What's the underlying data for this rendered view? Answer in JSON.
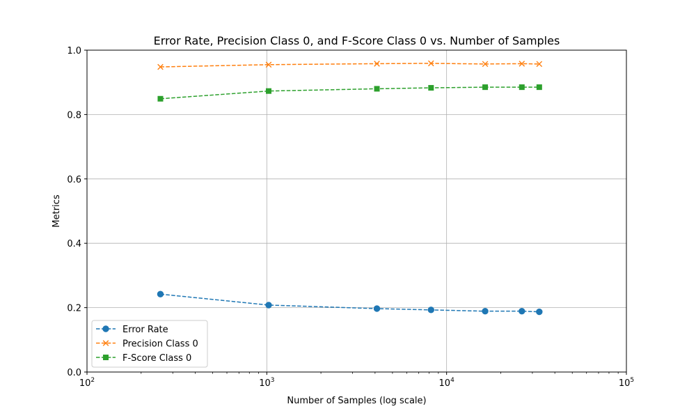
{
  "chart_data": {
    "type": "line",
    "title": "Error Rate, Precision Class 0, and F-Score Class 0 vs. Number of Samples",
    "xlabel": "Number of Samples (log scale)",
    "ylabel": "Metrics",
    "xscale": "log",
    "xlim": [
      100,
      100000
    ],
    "ylim": [
      0,
      1.0
    ],
    "xticks": [
      {
        "value": 100,
        "base": "10",
        "exp": "2"
      },
      {
        "value": 1000,
        "base": "10",
        "exp": "3"
      },
      {
        "value": 10000,
        "base": "10",
        "exp": "4"
      },
      {
        "value": 100000,
        "base": "10",
        "exp": "5"
      }
    ],
    "yticks": [
      "0.0",
      "0.2",
      "0.4",
      "0.6",
      "0.8",
      "1.0"
    ],
    "grid": true,
    "legend_position": "lower-left",
    "x": [
      256,
      1024,
      4096,
      8192,
      16384,
      26214,
      32768
    ],
    "series": [
      {
        "name": "Error Rate",
        "marker": "circle",
        "color": "#1f77b4",
        "values": [
          0.242,
          0.208,
          0.197,
          0.193,
          0.189,
          0.189,
          0.187
        ]
      },
      {
        "name": "Precision Class 0",
        "marker": "x",
        "color": "#ff7f0e",
        "values": [
          0.948,
          0.955,
          0.958,
          0.959,
          0.957,
          0.958,
          0.957
        ]
      },
      {
        "name": "F-Score Class 0",
        "marker": "square",
        "color": "#2ca02c",
        "values": [
          0.849,
          0.873,
          0.88,
          0.883,
          0.885,
          0.885,
          0.885
        ]
      }
    ]
  }
}
